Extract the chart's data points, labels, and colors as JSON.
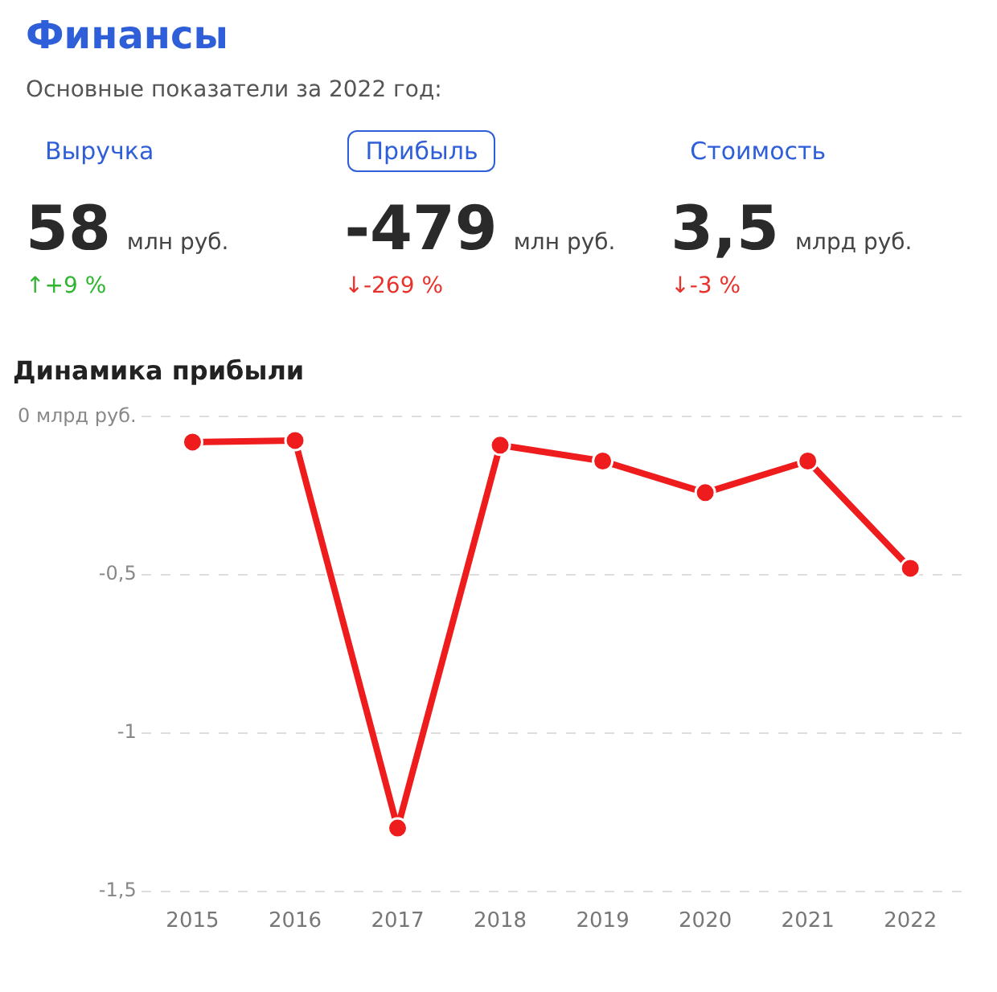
{
  "chart_data": [
    {
      "type": "other",
      "title": "Финансы",
      "subtitle": "Основные показатели за 2022 год:",
      "annotations": [
        "Выручка",
        "58",
        "млн руб.",
        "↑+9 %",
        "Прибыль",
        "-479",
        "млн руб.",
        "↓-269 %",
        "Стоимость",
        "3,5",
        "млрд руб.",
        "↓-3 %"
      ],
      "colors": [
        "#2fb52f",
        "#e8322b",
        "#e8322b"
      ]
    },
    {
      "type": "line",
      "title": "Динамика прибыли",
      "categories": [
        "2015",
        "2016",
        "2017",
        "2018",
        "2019",
        "2020",
        "2021",
        "2022"
      ],
      "series": [
        {
          "color": "#ee1c1c",
          "values": [
            -0.08,
            -0.075,
            -1.3,
            -0.09,
            -0.14,
            -0.24,
            -0.14,
            -0.479
          ]
        }
      ],
      "ylim": [
        -1.5,
        0
      ],
      "yticks": [
        {
          "value": 0,
          "label": "0 млрд руб."
        },
        {
          "value": -0.5,
          "label": "-0,5"
        },
        -1,
        {
          "value": -1.5,
          "label": "-1,5"
        }
      ],
      "grid": "y",
      "marker": "circle",
      "line_style": "solid",
      "legend": false
    }
  ]
}
